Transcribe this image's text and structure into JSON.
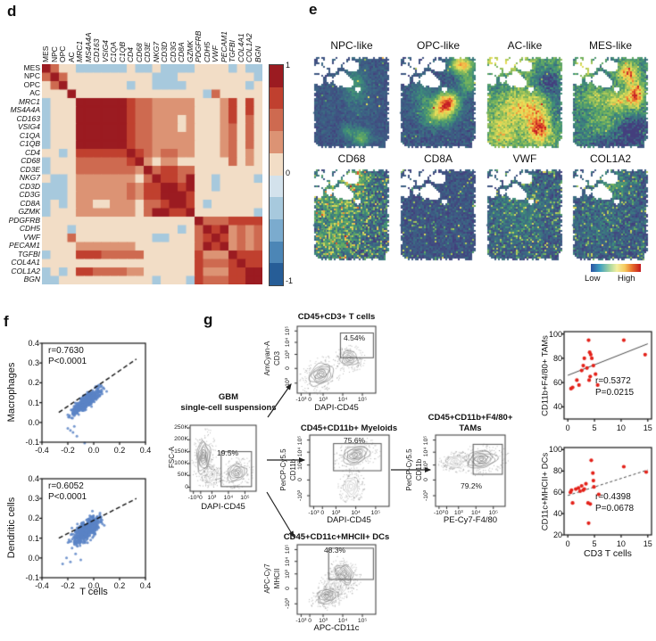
{
  "panel_labels": {
    "d": "d",
    "e": "e",
    "f": "f",
    "g": "g"
  },
  "chart_data": [
    {
      "id": "d-correlation-heatmap",
      "type": "heatmap",
      "labels": [
        "MES",
        "NPC",
        "OPC",
        "AC",
        "MRC1",
        "MS4A4A",
        "CD163",
        "VSIG4",
        "C1QA",
        "C1QB",
        "CD4",
        "CD68",
        "CD3E",
        "NKG7",
        "CD3D",
        "CD3G",
        "CD8A",
        "GZMK",
        "PDGFRB",
        "CDH5",
        "VWF",
        "PECAM1",
        "TGFBI",
        "COL4A1",
        "COL1A2",
        "BGN"
      ],
      "italic_from": 4,
      "colorbar_ticks": [
        "1",
        "0",
        "-1"
      ],
      "palette": [
        "#9b1b21",
        "#c0402f",
        "#ce6a50",
        "#dc9374",
        "#f2ddc6",
        "#d3e2ec",
        "#a7c9dd",
        "#7babce",
        "#4c86b6",
        "#265d97"
      ],
      "matrix": [
        [
          1,
          0.5,
          0.1,
          0.1,
          -0.25,
          -0.25,
          -0.25,
          -0.25,
          -0.25,
          -0.25,
          0.1,
          -0.25,
          -0.25,
          0.1,
          -0.25,
          -0.25,
          -0.25,
          -0.25,
          0.1,
          0.1,
          0.1,
          0.1,
          -0.25,
          0.1,
          -0.25,
          -0.25
        ],
        [
          0.5,
          1,
          0.5,
          0.1,
          0.1,
          0.1,
          0.1,
          0.1,
          0.1,
          0.1,
          0.1,
          0.1,
          0.1,
          -0.25,
          -0.25,
          -0.25,
          0.1,
          0.1,
          0.1,
          0.1,
          0.1,
          0.1,
          0.1,
          0.1,
          0.1,
          -0.25
        ],
        [
          0.1,
          0.5,
          1,
          0.1,
          0.1,
          0.1,
          0.1,
          0.1,
          0.1,
          0.1,
          -0.25,
          0.1,
          0.1,
          -0.25,
          -0.25,
          -0.25,
          -0.25,
          0.1,
          0.1,
          0.1,
          0.1,
          0.1,
          0.1,
          0.1,
          -0.25,
          0.1
        ],
        [
          0.1,
          0.1,
          0.1,
          1,
          0.1,
          0.1,
          0.1,
          0.1,
          0.1,
          0.1,
          0.1,
          0.1,
          0.1,
          0.1,
          0.1,
          0.1,
          0.1,
          0.1,
          0.1,
          -0.25,
          0.5,
          0.1,
          0.1,
          0.1,
          0.1,
          0.1
        ],
        [
          -0.25,
          0.1,
          0.1,
          0.1,
          1,
          0.9,
          0.9,
          0.9,
          0.9,
          0.9,
          0.7,
          0.5,
          0.5,
          0.3,
          0.3,
          0.3,
          0.3,
          0.3,
          0.1,
          0.1,
          0.1,
          0.3,
          0.7,
          0.1,
          0.7,
          0.1
        ],
        [
          -0.25,
          0.1,
          0.1,
          0.1,
          0.9,
          1,
          0.9,
          0.9,
          0.9,
          0.9,
          0.7,
          0.5,
          0.5,
          0.3,
          0.3,
          0.3,
          0.3,
          0.3,
          0.1,
          0.1,
          0.1,
          0.3,
          0.7,
          0.1,
          0.7,
          0.1
        ],
        [
          -0.25,
          0.1,
          0.1,
          0.1,
          0.9,
          0.9,
          1,
          0.9,
          0.9,
          0.9,
          0.7,
          0.5,
          0.5,
          0.3,
          0.3,
          0.3,
          0.1,
          0.3,
          0.1,
          0.1,
          0.1,
          0.3,
          0.7,
          0.1,
          0.5,
          0.1
        ],
        [
          -0.25,
          0.1,
          0.1,
          0.1,
          0.9,
          0.9,
          0.9,
          1,
          0.9,
          0.9,
          0.7,
          0.5,
          0.5,
          0.3,
          0.3,
          0.3,
          0.1,
          0.3,
          0.1,
          0.1,
          0.1,
          0.3,
          0.5,
          0.1,
          0.5,
          0.1
        ],
        [
          -0.25,
          0.1,
          0.1,
          0.1,
          0.9,
          0.9,
          0.9,
          0.9,
          1,
          0.9,
          0.7,
          0.5,
          0.5,
          0.3,
          0.3,
          0.3,
          0.3,
          0.3,
          0.1,
          0.1,
          0.1,
          0.3,
          0.5,
          0.1,
          0.5,
          0.1
        ],
        [
          -0.25,
          0.1,
          0.1,
          0.1,
          0.9,
          0.9,
          0.9,
          0.9,
          0.9,
          1,
          0.7,
          0.5,
          0.5,
          0.3,
          0.3,
          0.3,
          0.3,
          0.3,
          0.1,
          0.1,
          0.1,
          0.3,
          0.5,
          0.1,
          0.5,
          0.1
        ],
        [
          0.1,
          0.1,
          -0.25,
          0.1,
          0.7,
          0.7,
          0.7,
          0.7,
          0.7,
          0.7,
          1,
          0.7,
          0.5,
          0.3,
          0.5,
          0.5,
          0.3,
          0.3,
          0.1,
          0.1,
          0.1,
          0.3,
          0.5,
          0.1,
          0.3,
          0.1
        ],
        [
          -0.25,
          0.1,
          0.1,
          0.1,
          0.5,
          0.5,
          0.5,
          0.5,
          0.5,
          0.5,
          0.7,
          1,
          0.3,
          0.1,
          0.3,
          0.3,
          0.1,
          0.1,
          0.1,
          0.1,
          0.1,
          0.1,
          0.5,
          0.1,
          0.3,
          0.1
        ],
        [
          -0.25,
          0.1,
          0.1,
          0.1,
          0.5,
          0.5,
          0.5,
          0.5,
          0.5,
          0.5,
          0.5,
          0.3,
          1,
          0.5,
          0.7,
          0.7,
          0.5,
          0.5,
          0.1,
          0.1,
          0.1,
          0.1,
          0.1,
          0.1,
          0.1,
          0.1
        ],
        [
          0.1,
          -0.25,
          -0.25,
          0.1,
          0.3,
          0.3,
          0.3,
          0.3,
          0.3,
          0.3,
          0.3,
          0.1,
          0.5,
          1,
          0.7,
          0.7,
          0.5,
          0.9,
          0.1,
          0.1,
          -0.25,
          0.1,
          0.1,
          0.1,
          0.1,
          -0.25
        ],
        [
          -0.25,
          -0.25,
          -0.25,
          0.1,
          0.3,
          0.3,
          0.3,
          0.3,
          0.3,
          0.3,
          0.5,
          0.3,
          0.7,
          0.7,
          1,
          0.9,
          0.7,
          0.9,
          0.1,
          0.1,
          -0.25,
          0.1,
          0.1,
          0.1,
          0.1,
          0.1
        ],
        [
          -0.25,
          -0.25,
          -0.25,
          0.1,
          0.3,
          0.3,
          0.3,
          0.3,
          0.3,
          0.3,
          0.5,
          0.3,
          0.7,
          0.7,
          0.9,
          1,
          0.9,
          0.7,
          0.1,
          0.1,
          0.1,
          0.1,
          0.1,
          0.1,
          0.1,
          0.1
        ],
        [
          -0.25,
          0.1,
          -0.25,
          0.1,
          0.3,
          0.3,
          0.1,
          0.1,
          0.3,
          0.3,
          0.3,
          0.1,
          0.5,
          0.5,
          0.7,
          0.9,
          1,
          0.7,
          0.1,
          -0.25,
          0.1,
          0.1,
          0.1,
          0.1,
          0.1,
          0.1
        ],
        [
          -0.25,
          0.1,
          0.1,
          0.1,
          0.3,
          0.3,
          0.3,
          0.3,
          0.3,
          0.3,
          0.3,
          0.1,
          0.5,
          0.9,
          0.9,
          0.7,
          0.7,
          1,
          0.1,
          0.1,
          0.1,
          0.1,
          0.1,
          0.1,
          0.1,
          -0.25
        ],
        [
          0.1,
          0.1,
          0.1,
          0.1,
          0.1,
          0.1,
          0.1,
          0.1,
          0.1,
          0.1,
          0.1,
          0.1,
          0.1,
          0.1,
          0.1,
          0.1,
          0.1,
          0.1,
          1,
          0.5,
          0.5,
          0.5,
          0.7,
          0.7,
          0.7,
          0.7
        ],
        [
          0.1,
          0.1,
          0.1,
          -0.25,
          0.1,
          0.1,
          0.1,
          0.1,
          0.1,
          0.1,
          0.1,
          0.1,
          0.1,
          0.1,
          0.1,
          0.1,
          -0.25,
          0.1,
          0.5,
          1,
          0.7,
          0.9,
          0.3,
          0.5,
          0.3,
          0.5
        ],
        [
          0.1,
          0.1,
          0.1,
          0.5,
          0.1,
          0.1,
          0.1,
          0.1,
          0.1,
          0.1,
          0.1,
          0.1,
          0.1,
          -0.25,
          -0.25,
          0.1,
          0.1,
          0.1,
          0.5,
          0.7,
          1,
          0.7,
          0.3,
          0.5,
          0.3,
          0.5
        ],
        [
          0.1,
          0.1,
          0.1,
          0.1,
          0.3,
          0.3,
          0.3,
          0.3,
          0.3,
          0.3,
          0.3,
          0.1,
          0.1,
          0.1,
          0.1,
          0.1,
          0.1,
          0.1,
          0.5,
          0.9,
          0.7,
          1,
          0.3,
          0.5,
          0.3,
          0.5
        ],
        [
          -0.25,
          0.1,
          0.1,
          0.1,
          0.7,
          0.7,
          0.7,
          0.5,
          0.5,
          0.5,
          0.5,
          0.5,
          0.1,
          0.1,
          0.1,
          0.1,
          0.1,
          0.1,
          0.7,
          0.3,
          0.3,
          0.3,
          1,
          0.7,
          0.7,
          0.7
        ],
        [
          0.1,
          0.1,
          0.1,
          0.1,
          0.1,
          0.1,
          0.1,
          0.1,
          0.1,
          0.1,
          0.1,
          0.1,
          0.1,
          0.1,
          0.1,
          0.1,
          0.1,
          0.1,
          0.7,
          0.5,
          0.5,
          0.5,
          0.7,
          1,
          0.7,
          0.7
        ],
        [
          -0.25,
          0.1,
          -0.25,
          0.1,
          0.7,
          0.7,
          0.5,
          0.5,
          0.5,
          0.5,
          0.3,
          0.3,
          0.1,
          0.1,
          0.1,
          0.1,
          0.1,
          0.1,
          0.7,
          0.3,
          0.3,
          0.3,
          0.7,
          0.7,
          1,
          0.9
        ],
        [
          -0.25,
          -0.25,
          0.1,
          0.1,
          0.1,
          0.1,
          0.1,
          0.1,
          0.1,
          0.1,
          0.1,
          0.1,
          0.1,
          -0.25,
          0.1,
          0.1,
          0.1,
          -0.25,
          0.7,
          0.5,
          0.5,
          0.5,
          0.7,
          0.7,
          0.9,
          1
        ]
      ]
    },
    {
      "id": "e-spatial-maps",
      "type": "heatmap",
      "titles": [
        "NPC-like",
        "OPC-like",
        "AC-like",
        "MES-like",
        "CD68",
        "CD8A",
        "VWF",
        "COL1A2"
      ],
      "colorbar": {
        "low": "Low",
        "high": "High"
      }
    },
    {
      "id": "f-macrophages-vs-tcells",
      "type": "scatter",
      "ylabel": "Macrophages",
      "annotation": [
        "r=0.7630",
        "P<0.0001"
      ],
      "xlim": [
        -0.4,
        0.4
      ],
      "ylim": [
        -0.1,
        0.4
      ],
      "xticks": [
        "-0.4",
        "-0.2",
        "0.0",
        "0.2",
        "0.4"
      ],
      "yticks": [
        "0.4",
        "0.3",
        "0.2",
        "0.1",
        "0.0",
        "-0.1"
      ],
      "trend": [
        [
          -0.27,
          0.05
        ],
        [
          0.33,
          0.32
        ]
      ],
      "trend_style": "dashed"
    },
    {
      "id": "f-dendritic-vs-tcells",
      "type": "scatter",
      "ylabel": "Dendritic cells",
      "xlabel": "T cells",
      "annotation": [
        "r=0.6052",
        "P<0.0001"
      ],
      "xlim": [
        -0.4,
        0.4
      ],
      "ylim": [
        -0.1,
        0.4
      ],
      "xticks": [
        "-0.4",
        "-0.2",
        "0.0",
        "0.2",
        "0.4"
      ],
      "yticks": [
        "0.4",
        "0.3",
        "0.2",
        "0.1",
        "0.0",
        "-0.1"
      ],
      "trend": [
        [
          -0.27,
          0.1
        ],
        [
          0.33,
          0.3
        ]
      ],
      "trend_style": "dashed"
    },
    {
      "id": "g-tams-vs-cd3",
      "type": "scatter",
      "ylabel": "CD11b+F4/80+ TAMs",
      "annotation": [
        "r=0.5372",
        "P=0.0215"
      ],
      "xlim": [
        -0.7,
        15.7
      ],
      "ylim": [
        30,
        102
      ],
      "xticks": [
        "0",
        "5",
        "10",
        "15"
      ],
      "yticks": [
        "100",
        "80",
        "60",
        "40"
      ],
      "points": [
        [
          0.6,
          55
        ],
        [
          0.9,
          56
        ],
        [
          1.7,
          62
        ],
        [
          2.1,
          58
        ],
        [
          2.6,
          70
        ],
        [
          2.9,
          74
        ],
        [
          3.1,
          80
        ],
        [
          3.6,
          72
        ],
        [
          3.9,
          95
        ],
        [
          4.1,
          85
        ],
        [
          4.3,
          83
        ],
        [
          4.5,
          80
        ],
        [
          4.2,
          65
        ],
        [
          4.0,
          62
        ],
        [
          4.8,
          74
        ],
        [
          5.2,
          67
        ],
        [
          5.6,
          58
        ],
        [
          10.5,
          95
        ],
        [
          14.5,
          83
        ]
      ],
      "trend": [
        [
          0,
          66
        ],
        [
          15,
          92
        ]
      ],
      "trend_style": "solid"
    },
    {
      "id": "g-dcs-vs-cd3",
      "type": "scatter",
      "ylabel": "CD11c+MHCII+ DCs",
      "xlabel": "CD3 T cells",
      "annotation": [
        "r=0.4398",
        "P=0.0678"
      ],
      "xlim": [
        -0.7,
        15.7
      ],
      "ylim": [
        20,
        102
      ],
      "xticks": [
        "0",
        "5",
        "10",
        "15"
      ],
      "yticks": [
        "100",
        "80",
        "60",
        "40",
        "20"
      ],
      "points": [
        [
          0.5,
          60
        ],
        [
          0.7,
          62
        ],
        [
          0.9,
          50
        ],
        [
          1.5,
          63
        ],
        [
          2.0,
          64
        ],
        [
          2.3,
          61
        ],
        [
          2.6,
          66
        ],
        [
          2.9,
          62
        ],
        [
          3.1,
          63
        ],
        [
          3.4,
          68
        ],
        [
          3.8,
          50
        ],
        [
          3.9,
          31
        ],
        [
          4.2,
          49
        ],
        [
          4.4,
          90
        ],
        [
          4.7,
          78
        ],
        [
          4.8,
          71
        ],
        [
          4.9,
          65
        ],
        [
          5.8,
          58
        ],
        [
          10.5,
          84
        ],
        [
          14.7,
          79
        ]
      ],
      "trend": [
        [
          0,
          57
        ],
        [
          15,
          81
        ]
      ],
      "trend_style": "dashed"
    }
  ],
  "flow": {
    "source_label": [
      "GBM",
      "single-cell suspensions"
    ],
    "log_xticks": [
      "-10³",
      "0",
      "10³",
      "10⁴",
      "10⁵"
    ],
    "log_yticks": [
      "10⁵",
      "10⁴",
      "10³",
      "0",
      "-10³"
    ],
    "plots": [
      {
        "id": "tcells",
        "title": "CD45+CD3+ T cells",
        "ylabel": [
          "AmCyan-A",
          "CD3"
        ],
        "xlabel": "DAPI-CD45",
        "gate_pct": "4.54%"
      },
      {
        "id": "gbm",
        "ylabel": [
          "FSC-A"
        ],
        "xlabel": "DAPI-CD45",
        "gate_pct": "19.5%",
        "yticks": [
          "250K",
          "200K",
          "150K",
          "100K",
          "50K",
          "0"
        ]
      },
      {
        "id": "myeloids",
        "title": "CD45+CD11b+ Myeloids",
        "ylabel": [
          "PerCP-Cy5.5",
          "CD11b"
        ],
        "xlabel": "DAPI-CD45",
        "gate_pct": "75.6%"
      },
      {
        "id": "tams",
        "title": "CD45+CD11b+F4/80+",
        "title2": "TAMs",
        "ylabel": [
          "PerCP-Cy5.5",
          "CD11b"
        ],
        "xlabel": "PE-Cy7-F4/80",
        "gate_pct": "79.2%"
      },
      {
        "id": "dcs",
        "title": "CD45+CD11c+MHCII+ DCs",
        "ylabel": [
          "APC-Cy7",
          "MHCII"
        ],
        "xlabel": "APC-CD11c",
        "gate_pct": "48.3%"
      }
    ]
  },
  "colors": {
    "scatter_blue": "#5b84c6",
    "scatter_red": "#e32119",
    "spatial_low": "#443e7d",
    "spatial_high": "#c41e25"
  }
}
